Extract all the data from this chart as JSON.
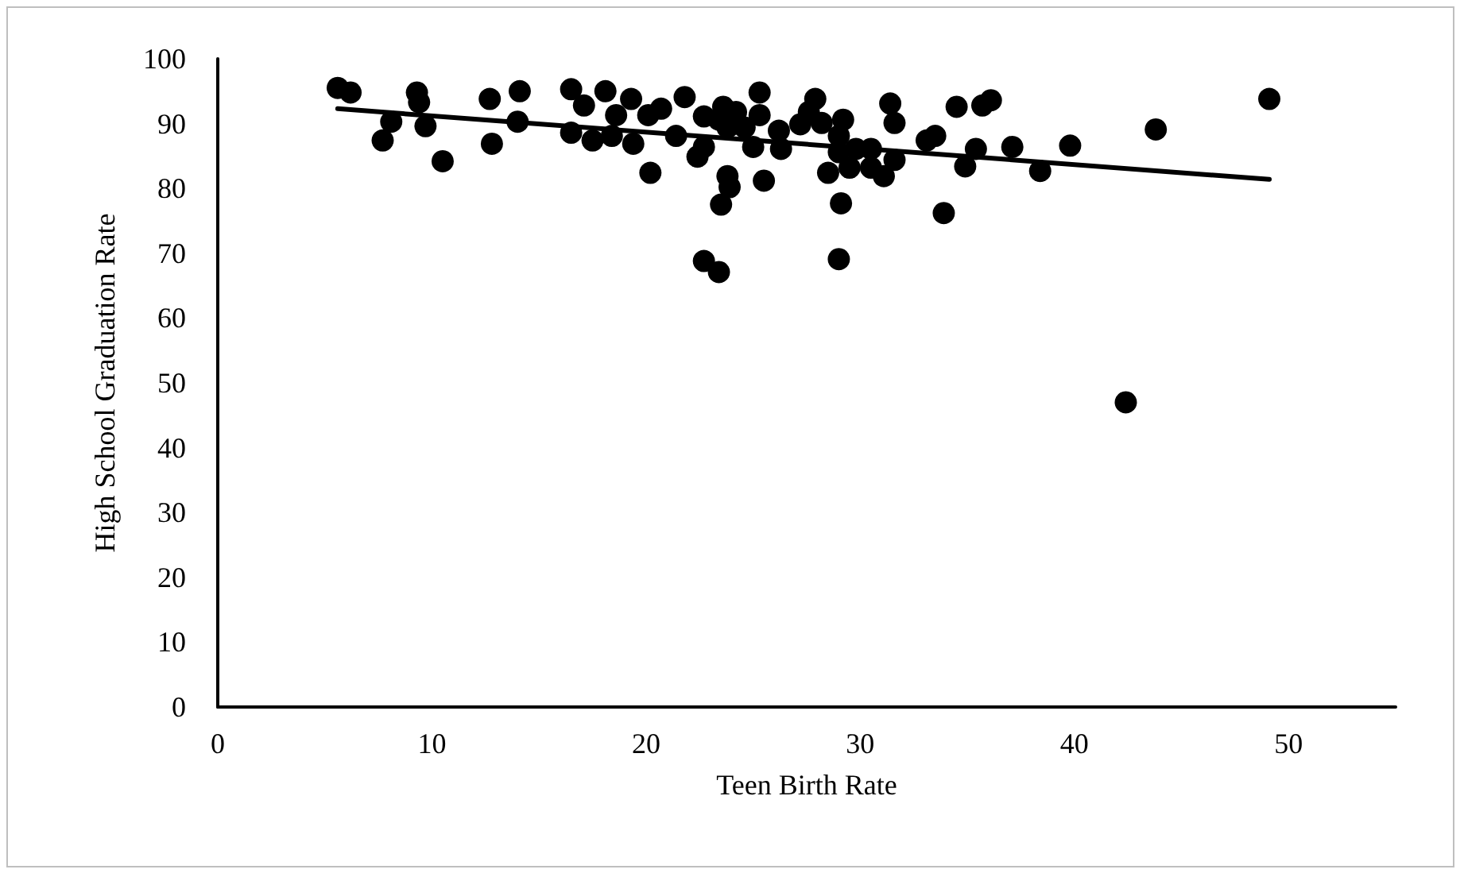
{
  "chart_data": {
    "type": "scatter",
    "xlabel": "Teen Birth Rate",
    "ylabel": "High School Graduation Rate",
    "xlim": [
      0,
      55
    ],
    "xticks": [
      0,
      10,
      20,
      30,
      40,
      50
    ],
    "ylim": [
      0,
      100
    ],
    "yticks": [
      0,
      10,
      20,
      30,
      40,
      50,
      60,
      70,
      80,
      90,
      100
    ],
    "grid": false,
    "marker": "circle",
    "series": [
      {
        "color": "#000000",
        "x": [
          5.6,
          6.2,
          8.1,
          7.7,
          9.3,
          9.4,
          9.7,
          10.5,
          12.7,
          12.8,
          14.0,
          14.1,
          16.5,
          17.1,
          16.5,
          17.5,
          18.1,
          18.4,
          18.6,
          19.3,
          19.4,
          20.1,
          20.7,
          20.2,
          21.8,
          21.4,
          22.7,
          22.4,
          22.7,
          23.6,
          23.4,
          24.2,
          23.8,
          25.3,
          25.3,
          24.6,
          25.0,
          23.8,
          23.9,
          23.5,
          25.5,
          26.2,
          26.3,
          22.7,
          23.4,
          27.9,
          27.6,
          27.2,
          28.2,
          29.2,
          29.0,
          28.5,
          29.5,
          29.0,
          29.8,
          30.5,
          30.5,
          31.1,
          31.6,
          31.4,
          31.6,
          29.1,
          29.0,
          33.9,
          33.1,
          33.5,
          34.5,
          35.7,
          36.1,
          35.4,
          34.9,
          37.1,
          38.4,
          39.8,
          43.8,
          49.1,
          42.4
        ],
        "values": [
          95.5,
          94.8,
          90.3,
          87.4,
          94.8,
          93.3,
          89.6,
          84.2,
          93.8,
          86.9,
          90.3,
          95.0,
          95.3,
          92.8,
          88.6,
          87.4,
          95.0,
          88.1,
          91.3,
          93.8,
          86.9,
          91.3,
          92.3,
          82.4,
          94.1,
          88.1,
          91.1,
          84.9,
          86.4,
          92.6,
          90.6,
          91.8,
          89.4,
          94.8,
          91.3,
          89.4,
          86.4,
          81.9,
          80.2,
          77.5,
          81.2,
          88.9,
          86.1,
          68.8,
          67.1,
          93.8,
          91.8,
          89.9,
          90.1,
          90.6,
          88.1,
          82.4,
          83.2,
          85.6,
          86.1,
          86.1,
          83.2,
          81.9,
          84.4,
          93.1,
          90.1,
          77.7,
          69.1,
          76.2,
          87.4,
          88.1,
          92.6,
          92.8,
          93.6,
          86.1,
          83.4,
          86.4,
          82.7,
          86.6,
          89.1,
          93.8,
          47.0
        ]
      },
      {
        "type": "line",
        "color": "#000000",
        "marker": "none",
        "x": [
          5.6,
          49.1
        ],
        "values": [
          92.3,
          81.4
        ]
      }
    ]
  }
}
